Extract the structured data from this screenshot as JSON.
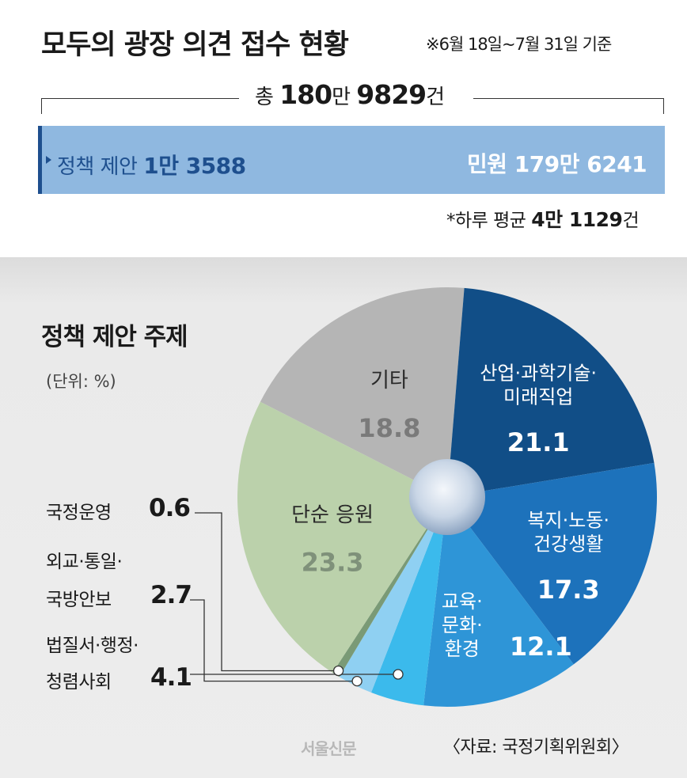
{
  "header": {
    "title": "모두의 광장 의견 접수 현황",
    "basis": "※6월 18일~7월 31일 기준"
  },
  "total": {
    "prefix": "총",
    "value1": "180",
    "unit1": "만",
    "value2": "9829",
    "unit2": "건"
  },
  "bar": {
    "policy_label": "정책 제안",
    "policy_value": "1만 3588",
    "civil_label": "민원",
    "civil_value": "179만 6241",
    "policy_color": "#1e4f8e",
    "bar_color": "#8fb8e0"
  },
  "average": {
    "prefix": "*하루 평균",
    "value": "4만 1129",
    "unit": "건"
  },
  "chart_data": {
    "type": "pie",
    "title": "정책 제안 주제",
    "unit_note": "(단위: %)",
    "slices": [
      {
        "label": [
          "기타"
        ],
        "value": 18.8,
        "color": "#b5b5b5"
      },
      {
        "label": [
          "산업·과학기술·",
          "미래직업"
        ],
        "value": 21.1,
        "color": "#114e87"
      },
      {
        "label": [
          "복지·노동·",
          "건강생활"
        ],
        "value": 17.3,
        "color": "#1d72bb"
      },
      {
        "label": [
          "교육·",
          "문화·",
          "환경"
        ],
        "value": 12.1,
        "color": "#2e95d7"
      },
      {
        "label": [
          "법질서·행정·",
          "청렴사회"
        ],
        "value": 4.1,
        "color": "#3bbaec"
      },
      {
        "label": [
          "외교·통일·",
          "국방안보"
        ],
        "value": 2.7,
        "color": "#8fd0f2"
      },
      {
        "label": [
          "국정운영"
        ],
        "value": 0.6,
        "color": "#7a9a76"
      },
      {
        "label": [
          "단순 응원"
        ],
        "value": 23.3,
        "color": "#bbd1ab"
      }
    ]
  },
  "footer": {
    "source": "〈자료: 국정기획위원회〉",
    "logo": "서울신문"
  }
}
